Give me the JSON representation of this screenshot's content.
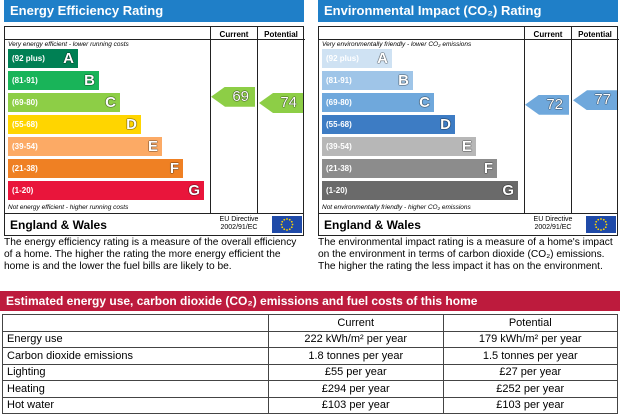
{
  "energy_efficiency": {
    "title": "Energy Efficiency Rating",
    "col_current": "Current",
    "col_potential": "Potential",
    "top_note": "Very energy efficient - lower running costs",
    "bottom_note": "Not energy efficient - higher running costs",
    "bands": [
      {
        "range": "(92 plus)",
        "letter": "A",
        "color": "#008054"
      },
      {
        "range": "(81-91)",
        "letter": "B",
        "color": "#19b459"
      },
      {
        "range": "(69-80)",
        "letter": "C",
        "color": "#8dce46"
      },
      {
        "range": "(55-68)",
        "letter": "D",
        "color": "#ffd500"
      },
      {
        "range": "(39-54)",
        "letter": "E",
        "color": "#fcaa65"
      },
      {
        "range": "(21-38)",
        "letter": "F",
        "color": "#ef8023"
      },
      {
        "range": "(1-20)",
        "letter": "G",
        "color": "#e9153b"
      }
    ],
    "current": "69",
    "potential": "74",
    "current_color": "#8dce46",
    "potential_color": "#8dce46",
    "region": "England & Wales",
    "directive_line1": "EU Directive",
    "directive_line2": "2002/91/EC",
    "description": "The energy efficiency rating is a measure of the overall efficiency of a home. The higher the rating the more energy efficient the home is and the lower the fuel bills are likely to be."
  },
  "environmental_impact": {
    "title": "Environmental Impact (CO₂) Rating",
    "col_current": "Current",
    "col_potential": "Potential",
    "top_note": "Very environmentally friendly - lower CO₂ emissions",
    "bottom_note": "Not environmentally friendly - higher CO₂ emissions",
    "bands": [
      {
        "range": "(92 plus)",
        "letter": "A",
        "color": "#cfe2f3"
      },
      {
        "range": "(81-91)",
        "letter": "B",
        "color": "#9fc5e8"
      },
      {
        "range": "(69-80)",
        "letter": "C",
        "color": "#6fa8dc"
      },
      {
        "range": "(55-68)",
        "letter": "D",
        "color": "#3d7cc4"
      },
      {
        "range": "(39-54)",
        "letter": "E",
        "color": "#b7b7b7"
      },
      {
        "range": "(21-38)",
        "letter": "F",
        "color": "#8c8c8c"
      },
      {
        "range": "(1-20)",
        "letter": "G",
        "color": "#6a6a6a"
      }
    ],
    "current": "72",
    "potential": "77",
    "current_color": "#6fa8dc",
    "potential_color": "#6fa8dc",
    "region": "England & Wales",
    "directive_line1": "EU Directive",
    "directive_line2": "2002/91/EC",
    "description": "The environmental impact rating is a measure of a home's impact on the environment in terms of carbon dioxide (CO₂) emissions. The higher the rating the less impact it has on the environment."
  },
  "estimates": {
    "title": "Estimated energy use, carbon dioxide (CO₂) emissions and fuel costs of this home",
    "col_current": "Current",
    "col_potential": "Potential",
    "rows": [
      {
        "label": "Energy use",
        "current": "222 kWh/m² per year",
        "potential": "179 kWh/m² per year"
      },
      {
        "label": "Carbon dioxide emissions",
        "current": "1.8 tonnes per year",
        "potential": "1.5 tonnes per year"
      },
      {
        "label": "Lighting",
        "current": "£55 per year",
        "potential": "£27 per year"
      },
      {
        "label": "Heating",
        "current": "£294 per year",
        "potential": "£252 per year"
      },
      {
        "label": "Hot water",
        "current": "£103 per year",
        "potential": "£103 per year"
      }
    ]
  }
}
